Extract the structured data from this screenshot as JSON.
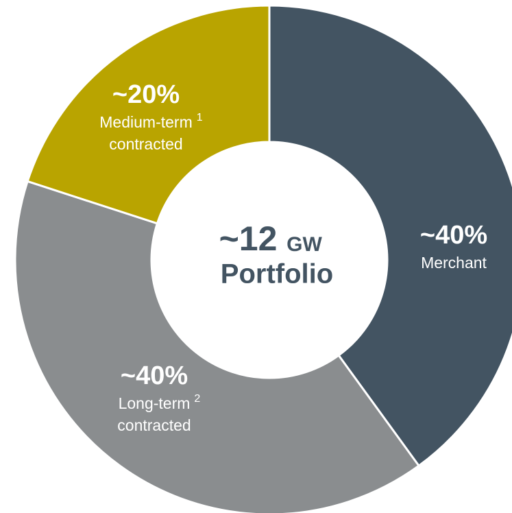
{
  "chart_data": {
    "type": "donut",
    "categories": [
      [
        "Merchant"
      ],
      [
        "Long-term",
        "contracted"
      ],
      [
        "Medium-term",
        "contracted"
      ]
    ],
    "footnotes": [
      null,
      "2",
      "1"
    ],
    "values": [
      40,
      40,
      20
    ],
    "value_labels": [
      "~40%",
      "~40%",
      "~20%"
    ],
    "colors": [
      "#435462",
      "#8a8d8f",
      "#b9a400"
    ],
    "center_value": "~12",
    "center_unit": "GW",
    "center_text": "Portfolio"
  }
}
